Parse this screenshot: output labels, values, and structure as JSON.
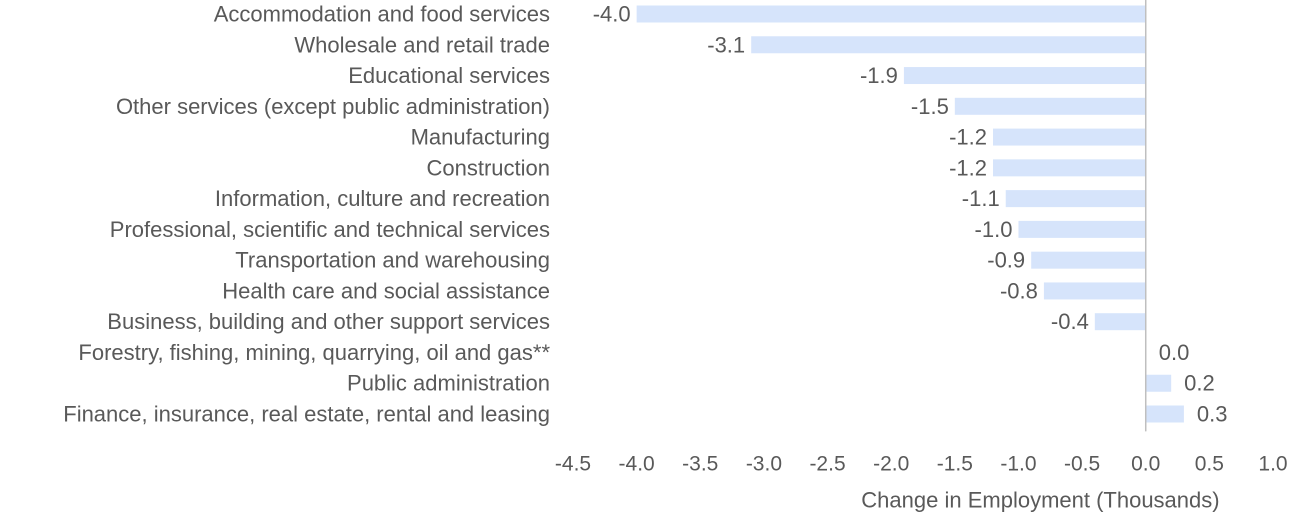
{
  "chart_data": {
    "type": "bar",
    "orientation": "horizontal",
    "categories": [
      "Accommodation and food services",
      "Wholesale and retail trade",
      "Educational services",
      "Other services (except public administration)",
      "Manufacturing",
      "Construction",
      "Information, culture and recreation",
      "Professional, scientific and technical services",
      "Transportation and warehousing",
      "Health care and social assistance",
      "Business, building and other support services",
      "Forestry, fishing, mining, quarrying, oil and gas**",
      "Public administration",
      "Finance, insurance, real estate, rental and leasing"
    ],
    "values": [
      -4.0,
      -3.1,
      -1.9,
      -1.5,
      -1.2,
      -1.2,
      -1.1,
      -1.0,
      -0.9,
      -0.8,
      -0.4,
      0.0,
      0.2,
      0.3
    ],
    "value_labels": [
      "-4.0",
      "-3.1",
      "-1.9",
      "-1.5",
      "-1.2",
      "-1.2",
      "-1.1",
      "-1.0",
      "-0.9",
      "-0.8",
      "-0.4",
      "0.0",
      "0.2",
      "0.3"
    ],
    "title": "",
    "xlabel": "Change in Employment (Thousands)",
    "ylabel": "",
    "xlim": [
      -4.5,
      1.0
    ],
    "xticks": [
      "-4.5",
      "-4.0",
      "-3.5",
      "-3.0",
      "-2.5",
      "-2.0",
      "-1.5",
      "-1.0",
      "-0.5",
      "0.0",
      "0.5",
      "1.0"
    ],
    "grid": false,
    "legend": "none",
    "bar_color": "#d6e4fb",
    "axis_color": "#bfbfbf",
    "text_color": "#595959"
  }
}
